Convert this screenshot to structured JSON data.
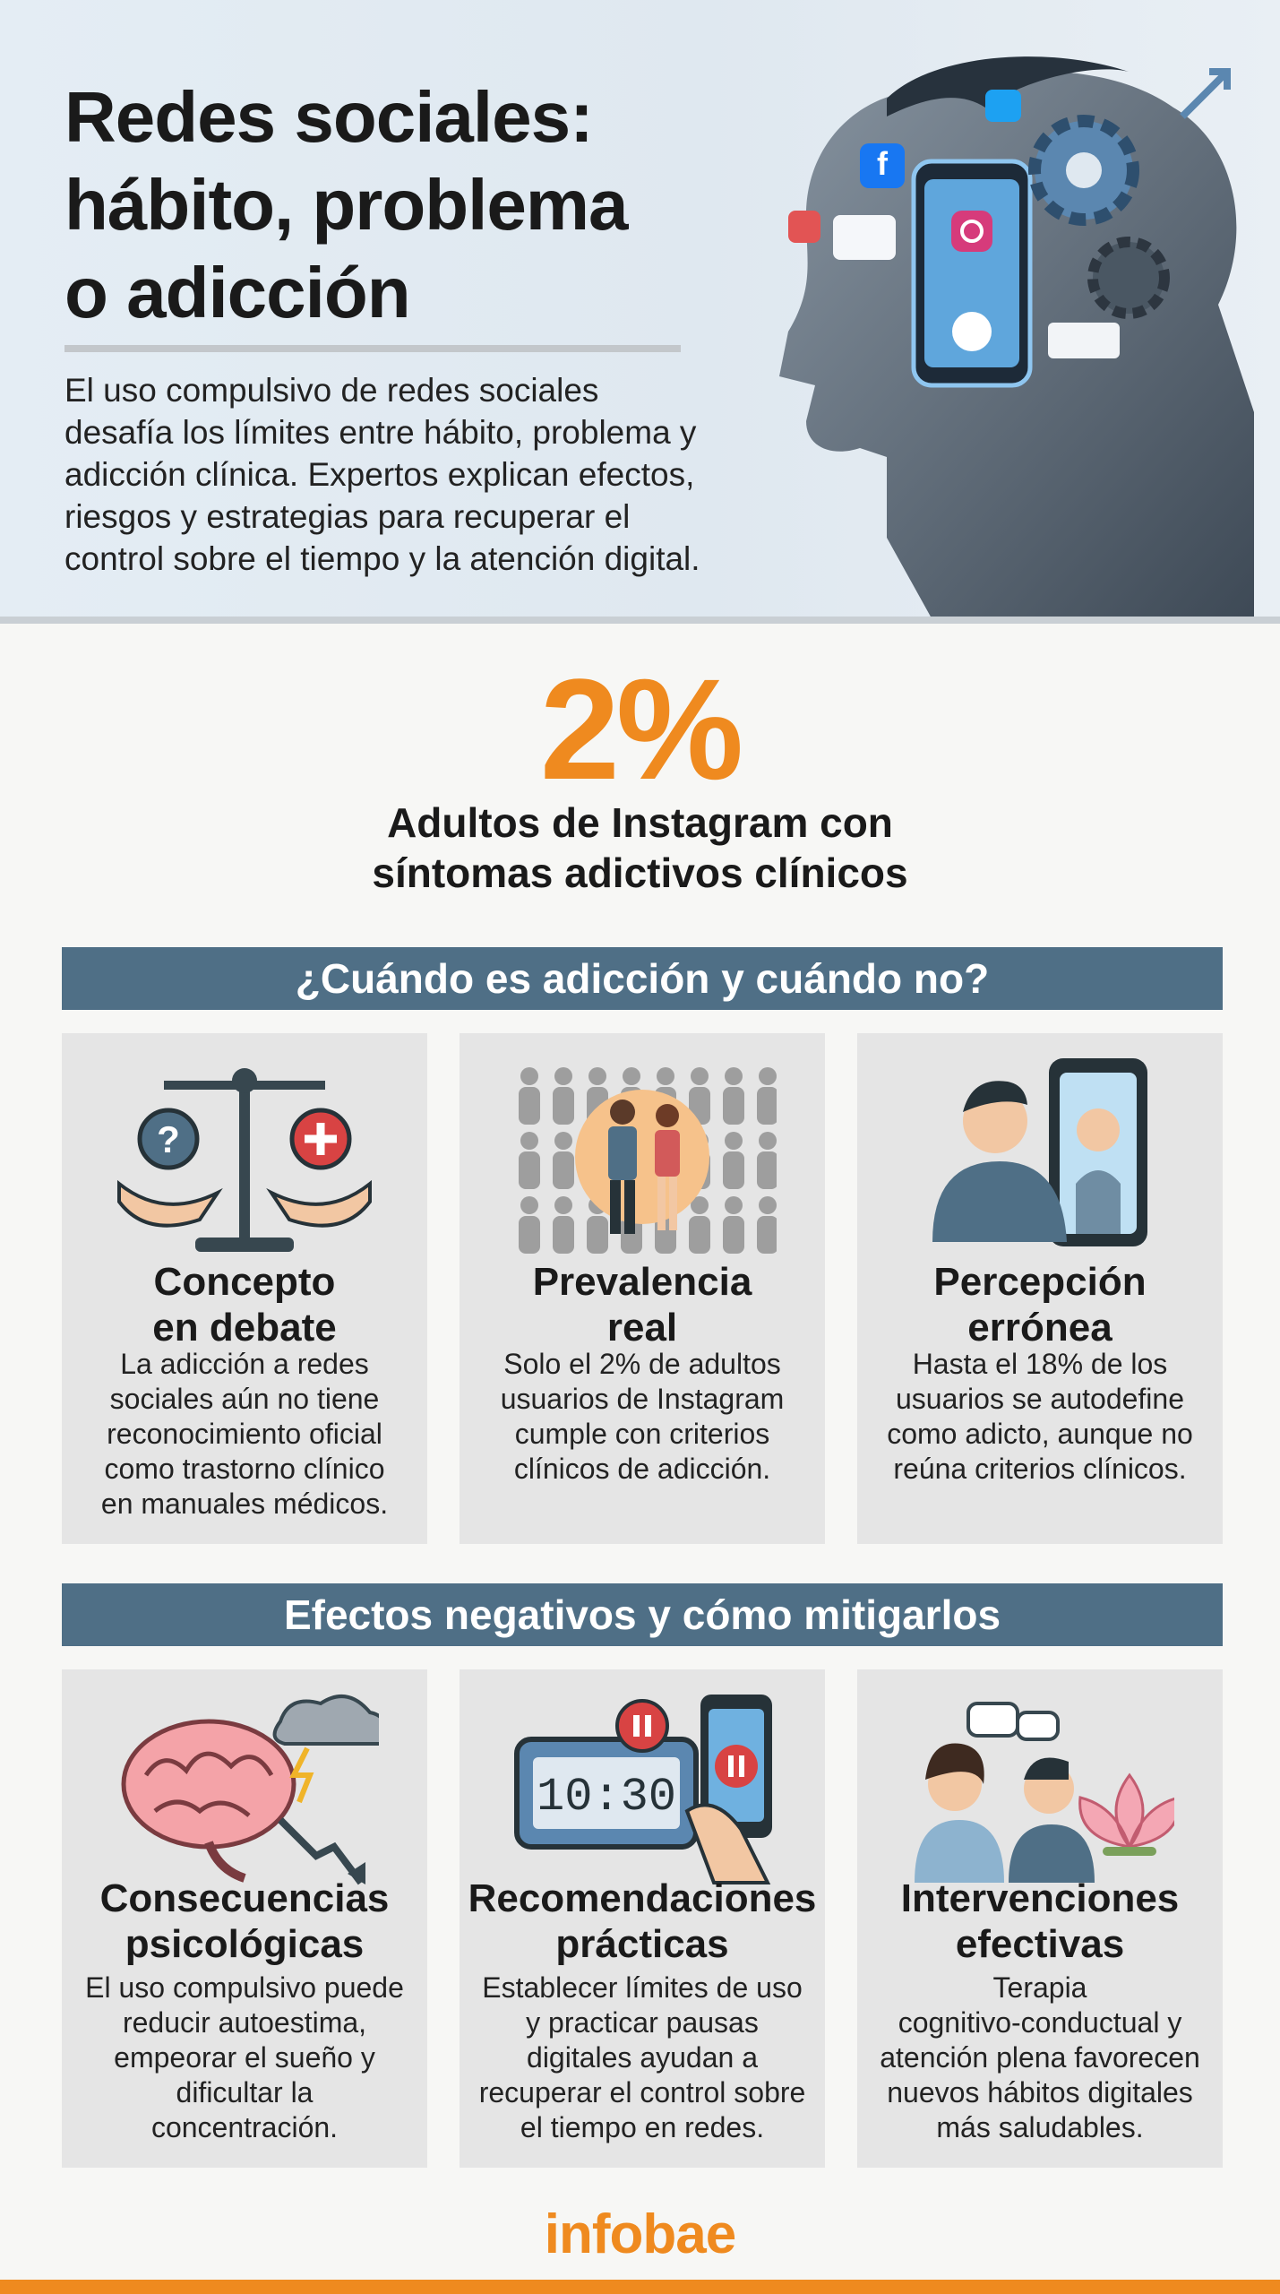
{
  "header": {
    "title": "Redes sociales:\nhábito, problema\no adicción",
    "description": "El uso compulsivo de redes sociales\ndesafía los límites entre hábito, problema y\nadicción clínica. Expertos explican efectos,\nriesgos y estrategias para recuperar el\ncontrol sobre el tiempo y la atención digital."
  },
  "stat": {
    "value": "2%",
    "label": "Adultos de Instagram con\nsíntomas adictivos clínicos"
  },
  "sections": [
    {
      "heading": "¿Cuándo es adicción y cuándo no?",
      "cards": [
        {
          "title": "Concepto\nen debate",
          "text": "La adicción a redes\nsociales aún no tiene\nreconocimiento oficial\ncomo trastorno clínico\nen manuales médicos."
        },
        {
          "title": "Prevalencia\nreal",
          "text": "Solo el 2% de adultos\nusuarios de Instagram\ncumple con criterios\nclínicos de adicción."
        },
        {
          "title": "Percepción\nerrónea",
          "text": "Hasta el 18% de los\nusuarios se autodefine\ncomo adicto, aunque no\nreúna criterios clínicos."
        }
      ]
    },
    {
      "heading": "Efectos negativos y cómo mitigarlos",
      "cards": [
        {
          "title": "Consecuencias\npsicológicas",
          "text": "El uso compulsivo puede\nreducir autoestima,\nempeorar el sueño y\ndificultar la\nconcentración."
        },
        {
          "title": "Recomendaciones\nprácticas",
          "text": "Establecer límites de uso\ny practicar pausas\ndigitales ayudan a\nrecuperar el control sobre\nel tiempo en redes."
        },
        {
          "title": "Intervenciones\nefectivas",
          "text": "Terapia\ncognitivo-conductual y\natención plena favorecen\nnuevos hábitos digitales\nmás saludables."
        }
      ]
    }
  ],
  "footer": {
    "logo": "infobae"
  }
}
